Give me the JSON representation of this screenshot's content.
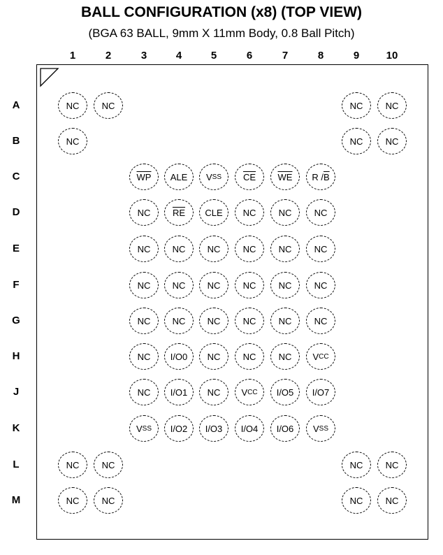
{
  "title": "BALL CONFIGURATION (x8) (TOP VIEW)",
  "subtitle": "(BGA 63 BALL, 9mm X 11mm Body, 0.8 Ball Pitch)",
  "columns": [
    "1",
    "2",
    "3",
    "4",
    "5",
    "6",
    "7",
    "8",
    "9",
    "10"
  ],
  "rows": [
    {
      "label": "A",
      "balls": [
        "NC",
        "NC",
        "",
        "",
        "",
        "",
        "",
        "",
        "NC",
        "NC"
      ]
    },
    {
      "label": "B",
      "balls": [
        "NC",
        "",
        "",
        "",
        "",
        "",
        "",
        "",
        "NC",
        "NC"
      ]
    },
    {
      "label": "C",
      "balls": [
        "",
        "",
        "WP",
        "ALE",
        "Vss",
        "CE",
        "WE",
        "R / B",
        "",
        ""
      ]
    },
    {
      "label": "D",
      "balls": [
        "",
        "",
        "NC",
        "RE",
        "CLE",
        "NC",
        "NC",
        "NC",
        "",
        ""
      ]
    },
    {
      "label": "E",
      "balls": [
        "",
        "",
        "NC",
        "NC",
        "NC",
        "NC",
        "NC",
        "NC",
        "",
        ""
      ]
    },
    {
      "label": "F",
      "balls": [
        "",
        "",
        "NC",
        "NC",
        "NC",
        "NC",
        "NC",
        "NC",
        "",
        ""
      ]
    },
    {
      "label": "G",
      "balls": [
        "",
        "",
        "NC",
        "NC",
        "NC",
        "NC",
        "NC",
        "NC",
        "",
        ""
      ]
    },
    {
      "label": "H",
      "balls": [
        "",
        "",
        "NC",
        "I/O0",
        "NC",
        "NC",
        "NC",
        "Vcc",
        "",
        ""
      ]
    },
    {
      "label": "J",
      "balls": [
        "",
        "",
        "NC",
        "I/O1",
        "NC",
        "Vcc",
        "I/O5",
        "I/O7",
        "",
        ""
      ]
    },
    {
      "label": "K",
      "balls": [
        "",
        "",
        "Vss",
        "I/O2",
        "I/O3",
        "I/O4",
        "I/O6",
        "Vss",
        "",
        ""
      ]
    },
    {
      "label": "L",
      "balls": [
        "NC",
        "NC",
        "",
        "",
        "",
        "",
        "",
        "",
        "NC",
        "NC"
      ]
    },
    {
      "label": "M",
      "balls": [
        "NC",
        "NC",
        "",
        "",
        "",
        "",
        "",
        "",
        "NC",
        "NC"
      ]
    }
  ],
  "overbar_signals": {
    "WP": "WP",
    "CE": "CE",
    "WE": "WE",
    "RE": "RE",
    "R / B": "B"
  },
  "small_cap_signals": {
    "Vss": "ss",
    "Vcc": "cc"
  }
}
